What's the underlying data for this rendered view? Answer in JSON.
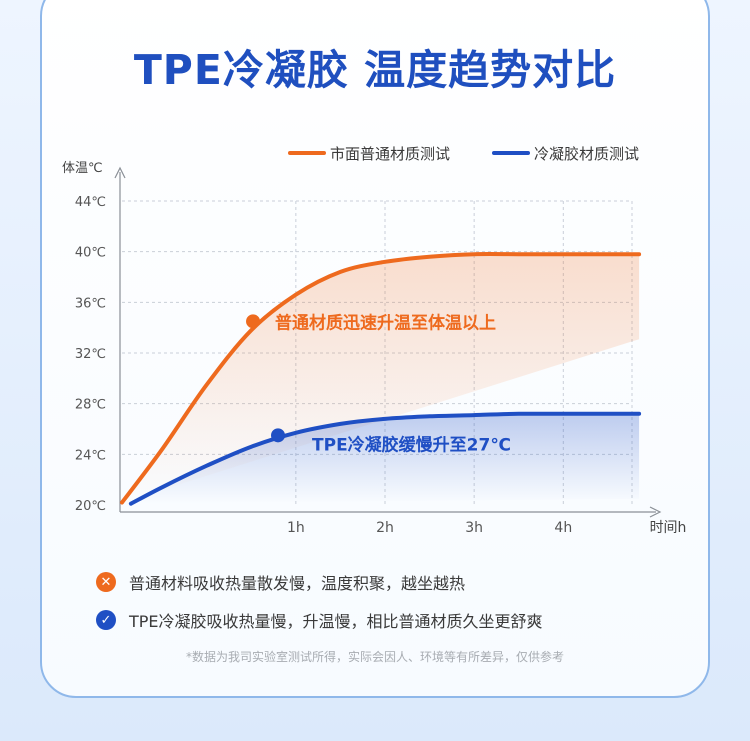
{
  "title": "TPE冷凝胶 温度趋势对比",
  "colors": {
    "orange": "#ee6a1e",
    "blue": "#1f4fc4",
    "title": "#1f4fbf"
  },
  "chart_data": {
    "type": "line",
    "ylabel": "体温℃",
    "xlabel": "时间h",
    "y_ticks": [
      "20℃",
      "24℃",
      "28℃",
      "32℃",
      "36℃",
      "40℃",
      "44℃"
    ],
    "x_ticks": [
      "1h",
      "2h",
      "3h",
      "4h"
    ],
    "xlim": [
      -0.95,
      4.95
    ],
    "ylim": [
      20,
      44
    ],
    "grid": true,
    "legend_position": "top-right",
    "series": [
      {
        "name": "市面普通材质测试",
        "color": "#ee6a1e",
        "x": [
          -0.95,
          -0.5,
          0,
          0.5,
          1,
          1.5,
          2,
          2.5,
          3,
          3.5,
          4,
          4.5,
          4.85
        ],
        "y": [
          20.2,
          24.4,
          29.5,
          33.8,
          36.6,
          38.4,
          39.2,
          39.6,
          39.8,
          39.8,
          39.8,
          39.8,
          39.8
        ]
      },
      {
        "name": "冷凝胶材质测试",
        "color": "#1f4fc4",
        "x": [
          -0.85,
          -0.5,
          0,
          0.5,
          1,
          1.5,
          2,
          2.5,
          3,
          3.5,
          4,
          4.5,
          4.85
        ],
        "y": [
          20.1,
          21.4,
          23.1,
          24.6,
          25.7,
          26.4,
          26.8,
          27.0,
          27.1,
          27.2,
          27.2,
          27.2,
          27.2
        ]
      }
    ],
    "annotations": [
      {
        "text": "普通材质迅速升温至体温以上",
        "series": 0,
        "x": 0.52,
        "y": 34.5
      },
      {
        "text": "TPE冷凝胶缓慢升至27℃",
        "series": 1,
        "x": 0.8,
        "y": 25.5
      }
    ]
  },
  "notes": [
    {
      "icon": "cross-icon",
      "text": "普通材料吸收热量散发慢，温度积聚，越坐越热"
    },
    {
      "icon": "check-icon",
      "text": "TPE冷凝胶吸收热量慢，升温慢，相比普通材质久坐更舒爽"
    }
  ],
  "footnote": "*数据为我司实验室测试所得，实际会因人、环境等有所差异，仅供参考"
}
